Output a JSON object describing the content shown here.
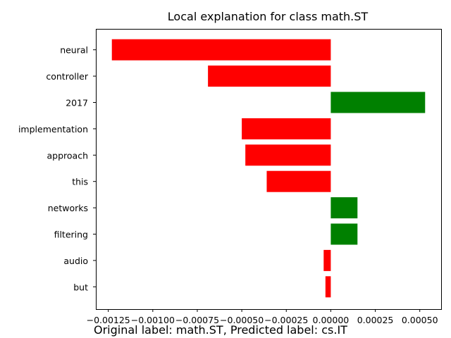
{
  "chart_data": {
    "type": "bar",
    "orientation": "horizontal",
    "title": "Local explanation for class math.ST",
    "categories": [
      "neural",
      "controller",
      "2017",
      "implementation",
      "approach",
      "this",
      "networks",
      "filtering",
      "audio",
      "but"
    ],
    "values": [
      -0.00123,
      -0.00069,
      0.00053,
      -0.0005,
      -0.00048,
      -0.00036,
      0.00015,
      0.00015,
      -4e-05,
      -3e-05
    ],
    "xlim": [
      -0.00132,
      0.00062
    ],
    "xticks": [
      -0.00125,
      -0.001,
      -0.00075,
      -0.0005,
      -0.00025,
      0.0,
      0.00025,
      0.0005
    ],
    "xtick_labels": [
      "−0.00125",
      "−0.00100",
      "−0.00075",
      "−0.00050",
      "−0.00025",
      "0.00000",
      "0.00025",
      "0.00050"
    ],
    "positive_color": "#008000",
    "negative_color": "#ff0000",
    "grid": false,
    "legend": "none"
  },
  "caption": "Original label: math.ST, Predicted label: cs.IT"
}
